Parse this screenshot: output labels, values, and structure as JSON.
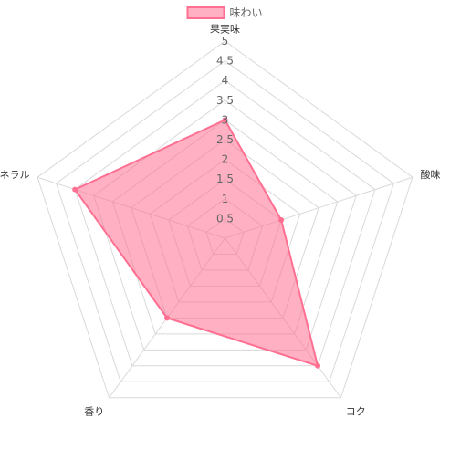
{
  "chart_data": {
    "type": "radar",
    "legend_position": "top",
    "series": [
      {
        "name": "味わい",
        "values": [
          3,
          1.5,
          4,
          2.5,
          4
        ],
        "fill_color": "#ff6f91",
        "line_color": "#ff6f91"
      }
    ],
    "categories": [
      "果実味",
      "酸味",
      "コク",
      "香り",
      "ミネラル"
    ],
    "scale": {
      "min": 0,
      "max": 5,
      "step": 0.5,
      "tick_labels": [
        "0.5",
        "1",
        "1.5",
        "2",
        "2.5",
        "3",
        "3.5",
        "4",
        "4.5",
        "5"
      ]
    },
    "grid": true,
    "colors": {
      "grid": "#d9d9d9",
      "tick_text": "#666666",
      "axis_label": "#333333"
    }
  }
}
